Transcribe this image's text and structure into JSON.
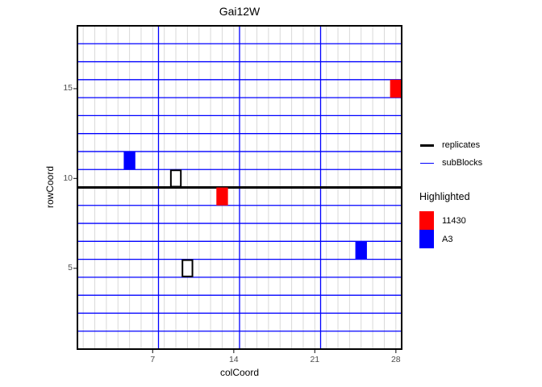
{
  "title": "Gai12W",
  "axes": {
    "x": {
      "label": "colCoord",
      "ticks": [
        "7",
        "14",
        "21",
        "28"
      ]
    },
    "y": {
      "label": "rowCoord",
      "ticks": [
        "5",
        "10",
        "15"
      ]
    }
  },
  "legend": {
    "lines": [
      {
        "label": "replicates",
        "color": "#000000",
        "thickness": 3
      },
      {
        "label": "subBlocks",
        "color": "#0000FF",
        "thickness": 1
      }
    ],
    "highlighted": {
      "title": "Highlighted",
      "items": [
        {
          "label": "11430",
          "color": "#FF0000"
        },
        {
          "label": "A3",
          "color": "#0000FF"
        }
      ]
    }
  },
  "colors": {
    "panel_border": "#000000",
    "replicate_line": "#000000",
    "subblock_line": "#0000FF",
    "minor_grid": "#D9D9D9",
    "tick_text": "#4D4D4D",
    "tick_mark": "#333333",
    "highlight_red": "#FF0000",
    "highlight_blue": "#0000FF",
    "outlined_cell_fill": "#FFFFFF"
  },
  "chart_data": {
    "type": "heatmap",
    "title": "Gai12W",
    "xlabel": "colCoord",
    "ylabel": "rowCoord",
    "x_ticks": [
      7,
      14,
      21,
      28
    ],
    "y_ticks": [
      5,
      10,
      15
    ],
    "xlim": [
      0.5,
      28.5
    ],
    "ylim": [
      0.5,
      18.5
    ],
    "grid": {
      "cols": 28,
      "rows": 18
    },
    "minor_grid_cols": [
      1,
      2,
      3,
      4,
      5,
      6,
      7,
      8,
      9,
      10,
      11,
      12,
      13,
      14,
      15,
      16,
      17,
      18,
      19,
      20,
      21,
      22,
      23,
      24,
      25,
      26,
      27,
      28
    ],
    "subblock_boundaries_col": [
      7.5,
      14.5,
      21.5
    ],
    "subblock_boundaries_row": [
      1.5,
      2.5,
      3.5,
      4.5,
      5.5,
      6.5,
      7.5,
      8.5,
      10.5,
      11.5,
      12.5,
      13.5,
      14.5,
      15.5,
      16.5,
      17.5
    ],
    "replicate_boundaries_row": [
      9.5
    ],
    "highlighted_cells": [
      {
        "col": 28,
        "row": 15,
        "group": "11430",
        "color": "#FF0000"
      },
      {
        "col": 13,
        "row": 9,
        "group": "11430",
        "color": "#FF0000"
      },
      {
        "col": 5,
        "row": 11,
        "group": "A3",
        "color": "#0000FF"
      },
      {
        "col": 25,
        "row": 6,
        "group": "A3",
        "color": "#0000FF"
      }
    ],
    "outlined_cells": [
      {
        "col": 9,
        "row": 10
      },
      {
        "col": 10,
        "row": 5
      }
    ]
  }
}
